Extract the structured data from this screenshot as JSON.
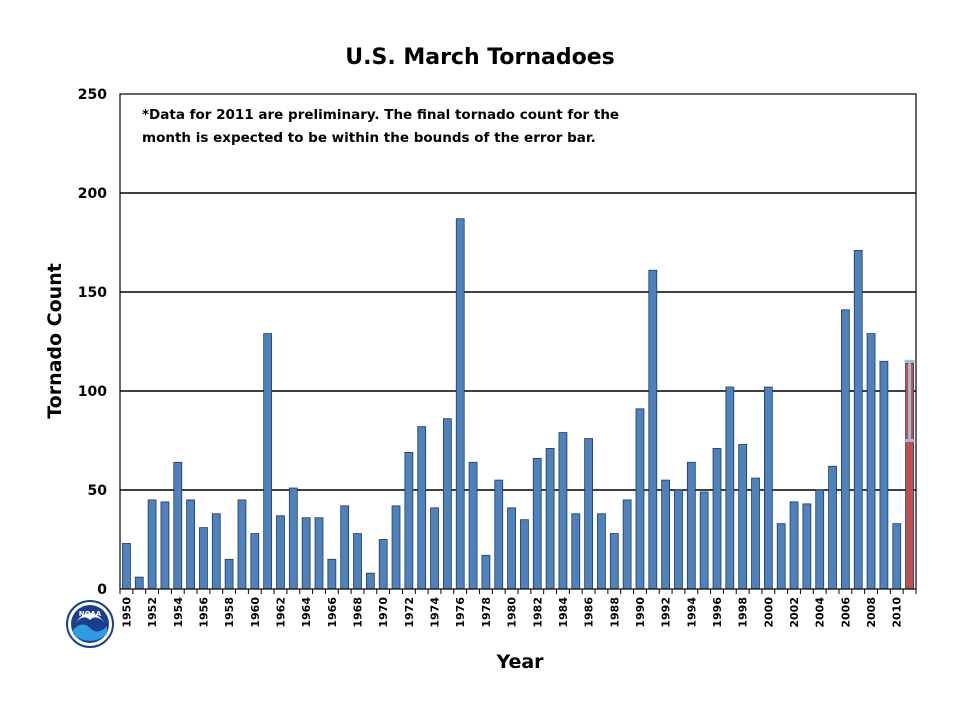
{
  "chart_data": {
    "type": "bar",
    "title": "U.S. March Tornadoes",
    "xlabel": "Year",
    "ylabel": "Tornado Count",
    "ylim": [
      0,
      250
    ],
    "yticks": [
      0,
      50,
      100,
      150,
      200,
      250
    ],
    "grid": "horizontal",
    "note_lines": [
      "*Data for 2011 are preliminary. The final tornado count for the",
      "month is expected to be within the bounds of the error bar."
    ],
    "categories": [
      1950,
      1951,
      1952,
      1953,
      1954,
      1955,
      1956,
      1957,
      1958,
      1959,
      1960,
      1961,
      1962,
      1963,
      1964,
      1965,
      1966,
      1967,
      1968,
      1969,
      1970,
      1971,
      1972,
      1973,
      1974,
      1975,
      1976,
      1977,
      1978,
      1979,
      1980,
      1981,
      1982,
      1983,
      1984,
      1985,
      1986,
      1987,
      1988,
      1989,
      1990,
      1991,
      1992,
      1993,
      1994,
      1995,
      1996,
      1997,
      1998,
      1999,
      2000,
      2001,
      2002,
      2003,
      2004,
      2005,
      2006,
      2007,
      2008,
      2009,
      2010,
      2011
    ],
    "xtick_labels": [
      "1950",
      "1952",
      "1954",
      "1956",
      "1958",
      "1960",
      "1962",
      "1964",
      "1966",
      "1968",
      "1970",
      "1972",
      "1974",
      "1976",
      "1978",
      "1980",
      "1982",
      "1984",
      "1986",
      "1988",
      "1990",
      "1992",
      "1994",
      "1996",
      "1998",
      "2000",
      "2002",
      "2004",
      "2006",
      "2008",
      "2010"
    ],
    "values": [
      23,
      6,
      45,
      44,
      64,
      45,
      31,
      38,
      15,
      45,
      28,
      129,
      37,
      51,
      36,
      36,
      15,
      42,
      28,
      8,
      25,
      42,
      69,
      82,
      41,
      86,
      187,
      64,
      17,
      55,
      41,
      35,
      66,
      71,
      79,
      38,
      76,
      38,
      28,
      45,
      91,
      161,
      55,
      50,
      64,
      49,
      71,
      102,
      73,
      56,
      102,
      33,
      44,
      43,
      50,
      62,
      141,
      171,
      129,
      115,
      33,
      114
    ],
    "preliminary_year": 2011,
    "error_bar": {
      "low": 75,
      "high": 115
    },
    "colors": {
      "bar": "#4f81bd",
      "bar_edge": "#1f3a5f",
      "preliminary_bar": "#c0504d",
      "error_bar": "#a6b8d8"
    }
  },
  "logo": {
    "text": "NOAA"
  }
}
